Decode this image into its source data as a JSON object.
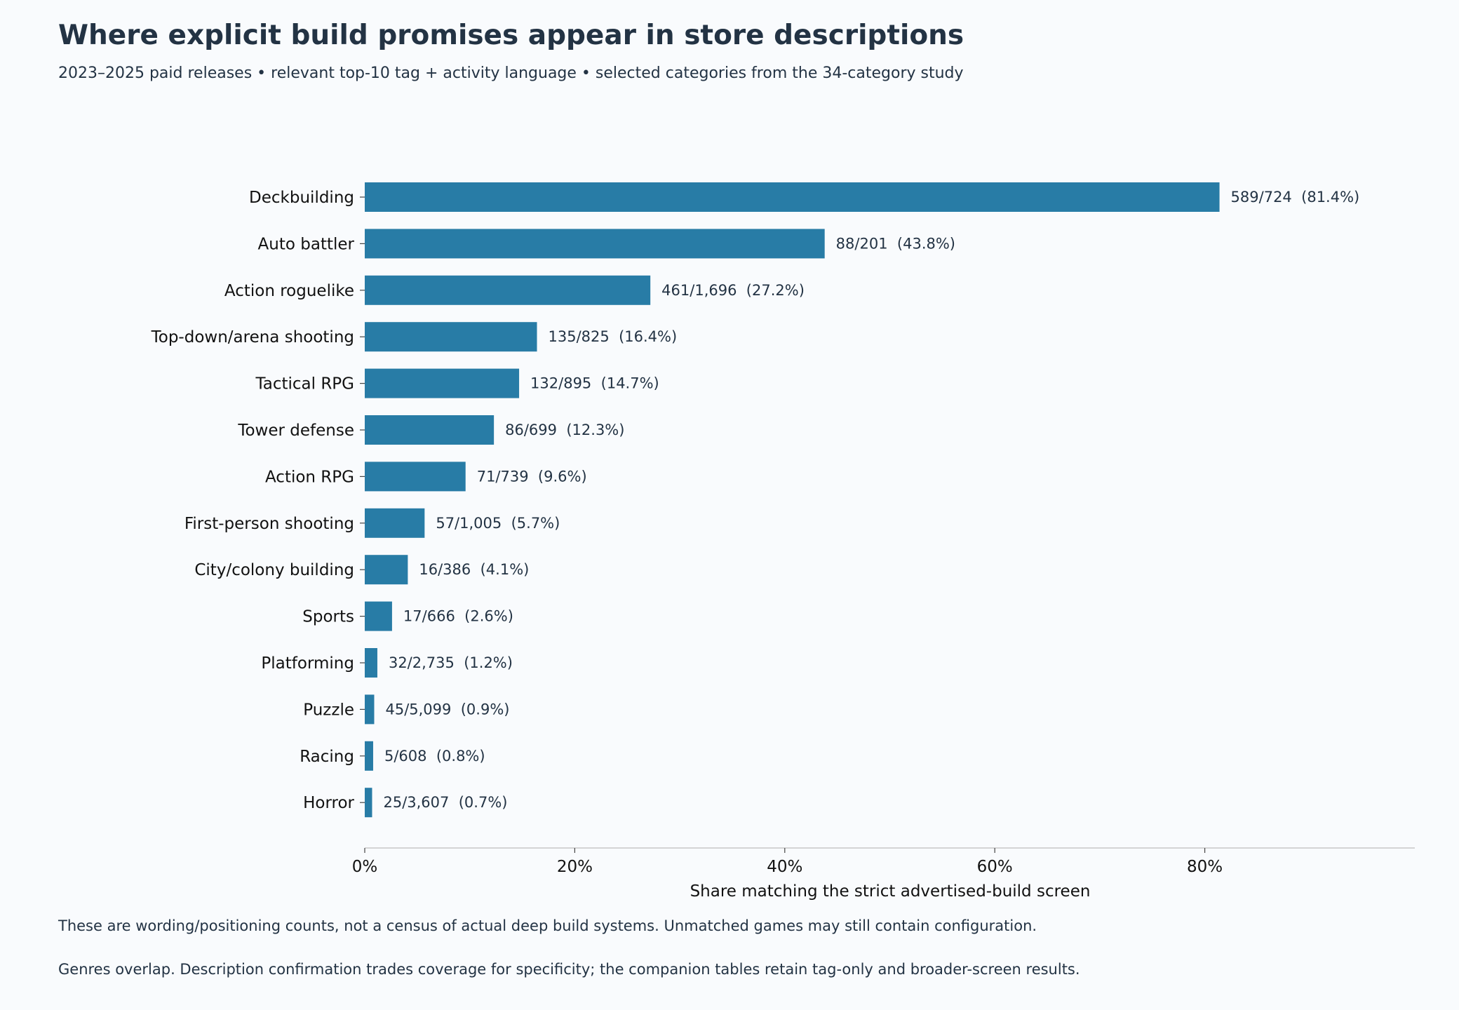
{
  "title": "Where explicit build promises appear in store descriptions",
  "subtitle": "2023–2025 paid releases • relevant top-10 tag + activity language • selected categories from the 34-category study",
  "notes": [
    "These are wording/positioning counts, not a census of actual deep build systems. Unmatched games may still contain configuration.",
    "Genres overlap. Description confirmation trades coverage for specificity; the companion tables retain tag-only and broader-screen results."
  ],
  "colors": {
    "bar": "#287ca6",
    "background": "#f9fbfd",
    "text": "#233344",
    "axis": "#c8c8c8"
  },
  "chart_data": {
    "type": "bar",
    "orientation": "horizontal",
    "title": "Where explicit build promises appear in store descriptions",
    "xlabel": "Share matching the strict advertised-build screen",
    "ylabel": "",
    "xlim": [
      0,
      100
    ],
    "xticks": [
      0,
      20,
      40,
      60,
      80
    ],
    "xtick_labels": [
      "0%",
      "20%",
      "40%",
      "60%",
      "80%"
    ],
    "grid": false,
    "categories": [
      "Deckbuilding",
      "Auto battler",
      "Action roguelike",
      "Top-down/arena shooting",
      "Tactical RPG",
      "Tower defense",
      "Action RPG",
      "First-person shooting",
      "City/colony building",
      "Sports",
      "Platforming",
      "Puzzle",
      "Racing",
      "Horror"
    ],
    "values": [
      81.4,
      43.8,
      27.2,
      16.4,
      14.7,
      12.3,
      9.6,
      5.7,
      4.1,
      2.6,
      1.2,
      0.9,
      0.8,
      0.7
    ],
    "data_labels": [
      "589/724  (81.4%)",
      "88/201  (43.8%)",
      "461/1,696  (27.2%)",
      "135/825  (16.4%)",
      "132/895  (14.7%)",
      "86/699  (12.3%)",
      "71/739  (9.6%)",
      "57/1,005  (5.7%)",
      "16/386  (4.1%)",
      "17/666  (2.6%)",
      "32/2,735  (1.2%)",
      "45/5,099  (0.9%)",
      "5/608  (0.8%)",
      "25/3,607  (0.7%)"
    ]
  }
}
